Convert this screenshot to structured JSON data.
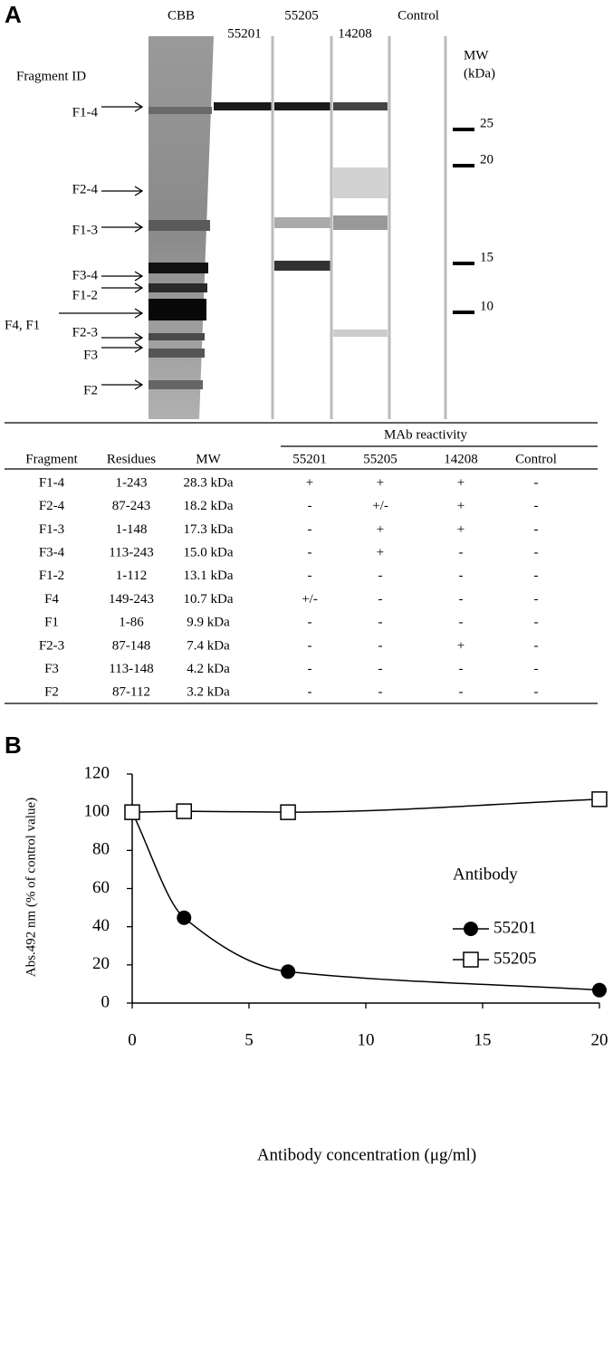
{
  "panel_a": {
    "label": "A",
    "lanes": [
      "CBB",
      "55201",
      "55205",
      "14208",
      "Control"
    ],
    "fragment_id_title": "Fragment ID",
    "fragment_labels": [
      "F1-4",
      "F2-4",
      "F1-3",
      "F3-4",
      "F1-2",
      "F4, F1",
      "F2-3",
      "F3",
      "F2"
    ],
    "mw_title": "MW",
    "mw_unit": "(kDa)",
    "mw_markers": [
      25,
      20,
      15,
      10
    ]
  },
  "table": {
    "group_header": "MAb reactivity",
    "columns": [
      "Fragment",
      "Residues",
      "MW",
      "55201",
      "55205",
      "14208",
      "Control"
    ],
    "rows": [
      [
        "F1-4",
        "1-243",
        "28.3 kDa",
        "+",
        "+",
        "+",
        "-"
      ],
      [
        "F2-4",
        "87-243",
        "18.2 kDa",
        "-",
        "+/-",
        "+",
        "-"
      ],
      [
        "F1-3",
        "1-148",
        "17.3 kDa",
        "-",
        "+",
        "+",
        "-"
      ],
      [
        "F3-4",
        "113-243",
        "15.0 kDa",
        "-",
        "+",
        "-",
        "-"
      ],
      [
        "F1-2",
        "1-112",
        "13.1 kDa",
        "-",
        "-",
        "-",
        "-"
      ],
      [
        "F4",
        "149-243",
        "10.7 kDa",
        "+/-",
        "-",
        "-",
        "-"
      ],
      [
        "F1",
        "1-86",
        "9.9 kDa",
        "-",
        "-",
        "-",
        "-"
      ],
      [
        "F2-3",
        "87-148",
        "7.4 kDa",
        "-",
        "-",
        "+",
        "-"
      ],
      [
        "F3",
        "113-148",
        "4.2 kDa",
        "-",
        "-",
        "-",
        "-"
      ],
      [
        "F2",
        "87-112",
        "3.2 kDa",
        "-",
        "-",
        "-",
        "-"
      ]
    ]
  },
  "panel_b_label": "B",
  "chart_data": {
    "type": "line",
    "x": [
      0,
      2.22,
      6.67,
      20
    ],
    "series": [
      {
        "name": "55201",
        "color": "#000000",
        "marker": "filled-circle",
        "values": [
          100,
          44.7,
          16.5,
          6.8
        ]
      },
      {
        "name": "55205",
        "color": "#000000",
        "marker": "open-square",
        "values": [
          100,
          100.5,
          100,
          106.8
        ]
      }
    ],
    "xlim": [
      0,
      20
    ],
    "xticks": [
      0,
      5,
      10,
      15,
      20
    ],
    "ylim": [
      0,
      120
    ],
    "yticks": [
      0,
      20,
      40,
      60,
      80,
      100,
      120
    ],
    "x_label": "Antibody concentration (μg/ml)",
    "y_label": "Abs.492 nm (% of control value)",
    "legend_title": "Antibody",
    "legend": "right",
    "grid": false
  }
}
